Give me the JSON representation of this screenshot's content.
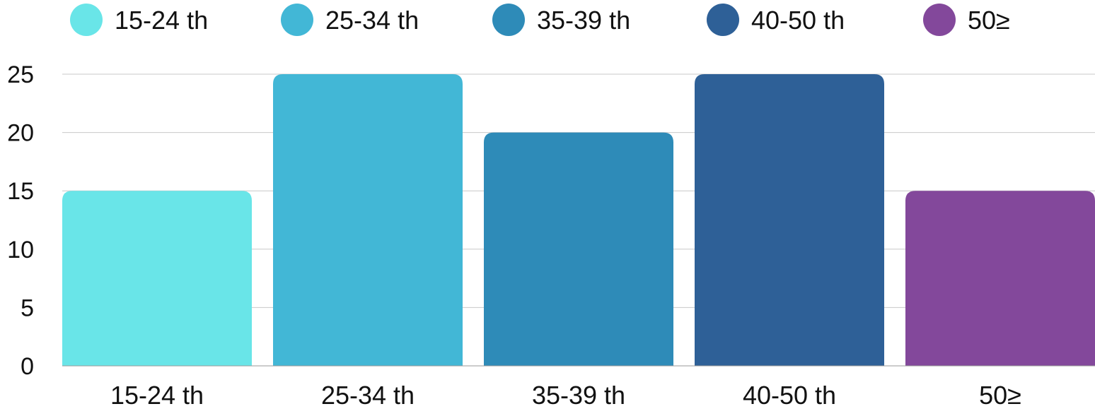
{
  "chart_data": {
    "type": "bar",
    "title": "",
    "xlabel": "",
    "ylabel": "",
    "categories": [
      "15-24 th",
      "25-34 th",
      "35-39 th",
      "40-50 th",
      "50≥"
    ],
    "values": [
      15,
      25,
      20,
      25,
      15
    ],
    "ylim": [
      0,
      25
    ],
    "yticks": [
      0,
      5,
      10,
      15,
      20,
      25
    ],
    "grid": true,
    "legend": {
      "placement": "top",
      "entries": [
        "15-24 th",
        "25-34 th",
        "35-39 th",
        "40-50 th",
        "50≥"
      ]
    },
    "colors": [
      "#69E5E8",
      "#42B7D6",
      "#2E8BB8",
      "#2E6097",
      "#83489B"
    ],
    "grid_color": "#C8C8C8",
    "axis_color": "#9A9A9A"
  }
}
